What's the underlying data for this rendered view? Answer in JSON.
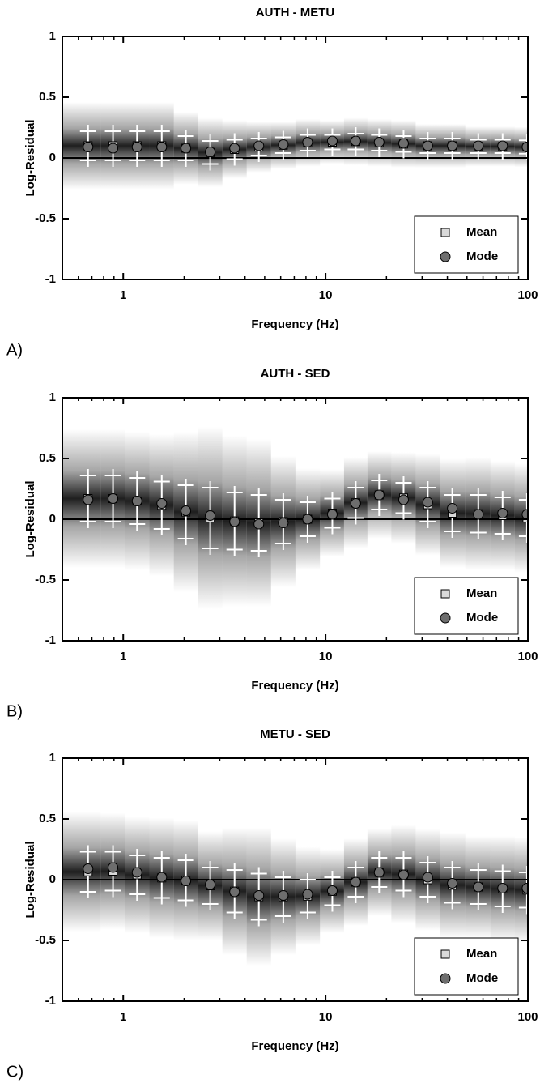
{
  "chart_data": [
    {
      "type": "scatter",
      "title": "AUTH - METU",
      "panel_label": "A)",
      "x_label": "Frequency (Hz)",
      "y_label": "Log-Residual",
      "x": [
        0.67,
        0.89,
        1.17,
        1.55,
        2.04,
        2.69,
        3.55,
        4.68,
        6.18,
        8.15,
        10.8,
        14.1,
        18.4,
        24.3,
        32,
        42.3,
        56.9,
        75,
        99
      ],
      "xlim": [
        0.5,
        100
      ],
      "xlog": true,
      "xticks": [
        1,
        10,
        100
      ],
      "xminorticks": [
        0.6,
        0.7,
        0.8,
        0.9,
        2,
        3,
        4,
        5,
        6,
        7,
        8,
        9,
        20,
        30,
        40,
        50,
        60,
        70,
        80,
        90
      ],
      "ylim": [
        -1,
        1
      ],
      "yticks": [
        1,
        0.5,
        0,
        -0.5,
        -1
      ],
      "hline": 0,
      "legend": "lower right",
      "series": [
        {
          "name": "Mean",
          "marker": "square",
          "color": "#d9d9d9",
          "values": [
            0.1,
            0.1,
            0.1,
            0.1,
            0.08,
            0.045,
            0.07,
            0.09,
            0.105,
            0.125,
            0.13,
            0.135,
            0.125,
            0.115,
            0.1,
            0.1,
            0.095,
            0.095,
            0.09
          ],
          "errors": [
            0.12,
            0.12,
            0.12,
            0.12,
            0.1,
            0.095,
            0.08,
            0.07,
            0.065,
            0.065,
            0.06,
            0.065,
            0.065,
            0.065,
            0.06,
            0.06,
            0.055,
            0.055,
            0.055
          ]
        },
        {
          "name": "Mode",
          "marker": "circle",
          "color": "#6e6e6e",
          "values": [
            0.09,
            0.08,
            0.09,
            0.09,
            0.08,
            0.05,
            0.08,
            0.1,
            0.11,
            0.13,
            0.14,
            0.14,
            0.13,
            0.12,
            0.1,
            0.1,
            0.1,
            0.1,
            0.09
          ]
        }
      ]
    },
    {
      "type": "scatter",
      "title": "AUTH - SED",
      "panel_label": "B)",
      "x_label": "Frequency (Hz)",
      "y_label": "Log-Residual",
      "x": [
        0.67,
        0.89,
        1.17,
        1.55,
        2.04,
        2.69,
        3.55,
        4.68,
        6.18,
        8.15,
        10.8,
        14.1,
        18.4,
        24.3,
        32,
        42.3,
        56.9,
        75,
        99
      ],
      "xlim": [
        0.5,
        100
      ],
      "xlog": true,
      "xticks": [
        1,
        10,
        100
      ],
      "xminorticks": [
        0.6,
        0.7,
        0.8,
        0.9,
        2,
        3,
        4,
        5,
        6,
        7,
        8,
        9,
        20,
        30,
        40,
        50,
        60,
        70,
        80,
        90
      ],
      "ylim": [
        -1,
        1
      ],
      "yticks": [
        1,
        0.5,
        0,
        -0.5,
        -1
      ],
      "hline": 0,
      "legend": "lower right",
      "series": [
        {
          "name": "Mean",
          "marker": "square",
          "color": "#d9d9d9",
          "values": [
            0.17,
            0.17,
            0.15,
            0.115,
            0.06,
            0.01,
            -0.015,
            -0.03,
            -0.02,
            0.0,
            0.05,
            0.135,
            0.2,
            0.175,
            0.12,
            0.05,
            0.045,
            0.03,
            0.01
          ],
          "errors": [
            0.19,
            0.19,
            0.19,
            0.195,
            0.22,
            0.25,
            0.235,
            0.23,
            0.18,
            0.14,
            0.12,
            0.125,
            0.12,
            0.125,
            0.14,
            0.15,
            0.155,
            0.15,
            0.15
          ]
        },
        {
          "name": "Mode",
          "marker": "circle",
          "color": "#6e6e6e",
          "values": [
            0.16,
            0.17,
            0.15,
            0.13,
            0.07,
            0.03,
            -0.02,
            -0.04,
            -0.03,
            0.0,
            0.04,
            0.13,
            0.2,
            0.16,
            0.14,
            0.09,
            0.04,
            0.05,
            0.04
          ]
        }
      ]
    },
    {
      "type": "scatter",
      "title": "METU - SED",
      "panel_label": "C)",
      "x_label": "Frequency (Hz)",
      "y_label": "Log-Residual",
      "x": [
        0.67,
        0.89,
        1.17,
        1.55,
        2.04,
        2.69,
        3.55,
        4.68,
        6.18,
        8.15,
        10.8,
        14.1,
        18.4,
        24.3,
        32,
        42.3,
        56.9,
        75,
        99
      ],
      "xlim": [
        0.5,
        100
      ],
      "xlog": true,
      "xticks": [
        1,
        10,
        100
      ],
      "xminorticks": [
        0.6,
        0.7,
        0.8,
        0.9,
        2,
        3,
        4,
        5,
        6,
        7,
        8,
        9,
        20,
        30,
        40,
        50,
        60,
        70,
        80,
        90
      ],
      "ylim": [
        -1,
        1
      ],
      "yticks": [
        1,
        0.5,
        0,
        -0.5,
        -1
      ],
      "hline": 0,
      "legend": "lower right",
      "series": [
        {
          "name": "Mean",
          "marker": "square",
          "color": "#d9d9d9",
          "values": [
            0.065,
            0.07,
            0.04,
            0.015,
            -0.005,
            -0.05,
            -0.095,
            -0.14,
            -0.14,
            -0.135,
            -0.095,
            -0.02,
            0.06,
            0.045,
            0.0,
            -0.045,
            -0.06,
            -0.075,
            -0.085
          ],
          "errors": [
            0.165,
            0.16,
            0.16,
            0.165,
            0.165,
            0.15,
            0.175,
            0.19,
            0.16,
            0.135,
            0.115,
            0.12,
            0.12,
            0.135,
            0.14,
            0.145,
            0.14,
            0.145,
            0.145
          ]
        },
        {
          "name": "Mode",
          "marker": "circle",
          "color": "#6e6e6e",
          "values": [
            0.09,
            0.1,
            0.06,
            0.02,
            -0.01,
            -0.04,
            -0.1,
            -0.13,
            -0.13,
            -0.12,
            -0.09,
            -0.02,
            0.06,
            0.04,
            0.02,
            -0.03,
            -0.06,
            -0.07,
            -0.07
          ]
        }
      ]
    }
  ]
}
